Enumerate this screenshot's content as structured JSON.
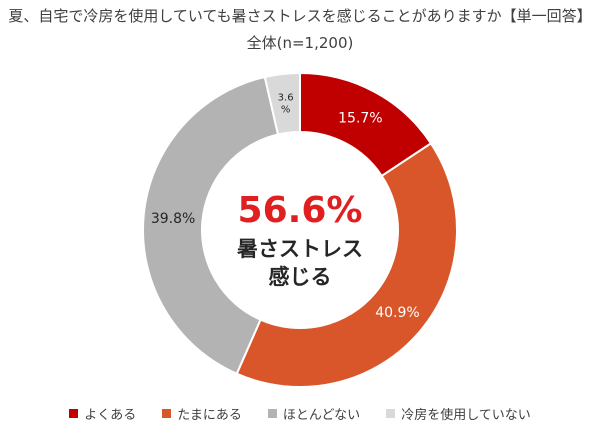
{
  "chart_data": {
    "type": "pie",
    "title": "夏、自宅で冷房を使用していても暑さストレスを感じることがありますか【単一回答】",
    "subtitle": "全体(n=1,200)",
    "center": {
      "value": "56.6%",
      "label_line1": "暑さストレス",
      "label_line2": "感じる"
    },
    "categories": [
      "よくある",
      "たまにある",
      "ほとんどない",
      "冷房を使用していない"
    ],
    "values": [
      15.7,
      40.9,
      39.8,
      3.6
    ],
    "labels": [
      "15.7%",
      "40.9%",
      "39.8%",
      "3.6\n%"
    ],
    "colors": [
      "#c00000",
      "#d9562a",
      "#b3b3b3",
      "#d9d9d9"
    ],
    "legend_position": "bottom"
  }
}
